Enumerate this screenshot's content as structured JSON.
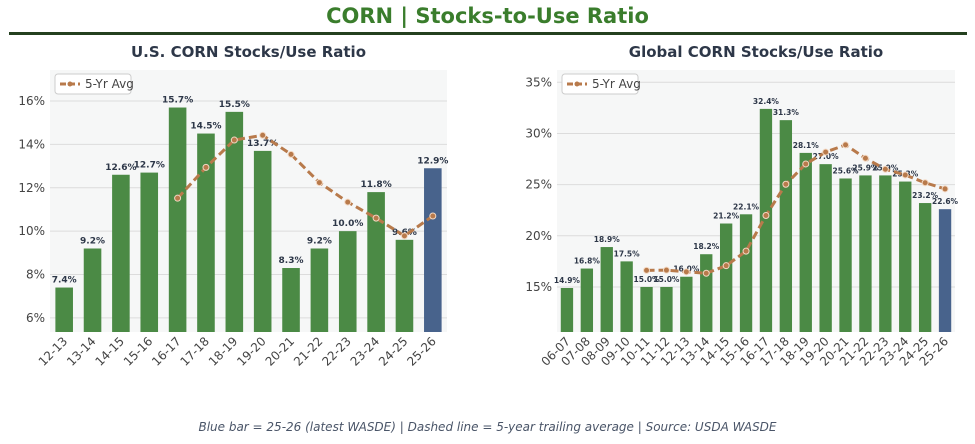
{
  "title": "CORN  |  Stocks-to-Use Ratio",
  "footer": "Blue bar = 25-26 (latest WASDE)   |   Dashed line = 5-year trailing average   |   Source: USDA WASDE",
  "colors": {
    "bar": "#4b8a45",
    "latest": "#48638c",
    "avg": "#b87a4b",
    "title": "#3a7d2c"
  },
  "chart_data": [
    {
      "type": "bar",
      "title": "U.S. CORN Stocks/Use Ratio",
      "legend": "5-Yr Avg",
      "legend_position": "top-left",
      "ylim": [
        5.35,
        17.43
      ],
      "yticks": [
        6,
        8,
        10,
        12,
        14,
        16
      ],
      "categories": [
        "12-13",
        "13-14",
        "14-15",
        "15-16",
        "16-17",
        "17-18",
        "18-19",
        "19-20",
        "20-21",
        "21-22",
        "22-23",
        "23-24",
        "24-25",
        "25-26"
      ],
      "values": [
        7.4,
        9.2,
        12.6,
        12.7,
        15.7,
        14.5,
        15.5,
        13.7,
        8.3,
        9.2,
        10.0,
        11.8,
        9.6,
        12.9
      ],
      "avg": [
        null,
        null,
        null,
        null,
        11.52,
        12.94,
        14.2,
        14.42,
        13.54,
        12.24,
        11.34,
        10.6,
        9.78,
        10.7
      ]
    },
    {
      "type": "bar",
      "title": "Global CORN Stocks/Use Ratio",
      "legend": "5-Yr Avg",
      "legend_position": "top-left",
      "ylim": [
        10.6,
        36.2
      ],
      "yticks": [
        15,
        20,
        25,
        30,
        35
      ],
      "categories": [
        "06-07",
        "07-08",
        "08-09",
        "09-10",
        "10-11",
        "11-12",
        "12-13",
        "13-14",
        "14-15",
        "15-16",
        "16-17",
        "17-18",
        "18-19",
        "19-20",
        "20-21",
        "21-22",
        "22-23",
        "23-24",
        "24-25",
        "25-26"
      ],
      "values": [
        14.9,
        16.8,
        18.9,
        17.5,
        15.0,
        15.0,
        16.0,
        18.2,
        21.2,
        22.1,
        32.4,
        31.3,
        28.1,
        27.0,
        25.6,
        25.9,
        25.9,
        25.3,
        23.2,
        22.6
      ],
      "avg": [
        null,
        null,
        null,
        null,
        16.62,
        16.64,
        16.48,
        16.34,
        17.08,
        18.5,
        21.98,
        25.04,
        27.02,
        28.18,
        28.88,
        27.58,
        26.5,
        25.94,
        25.18,
        24.58
      ]
    }
  ]
}
